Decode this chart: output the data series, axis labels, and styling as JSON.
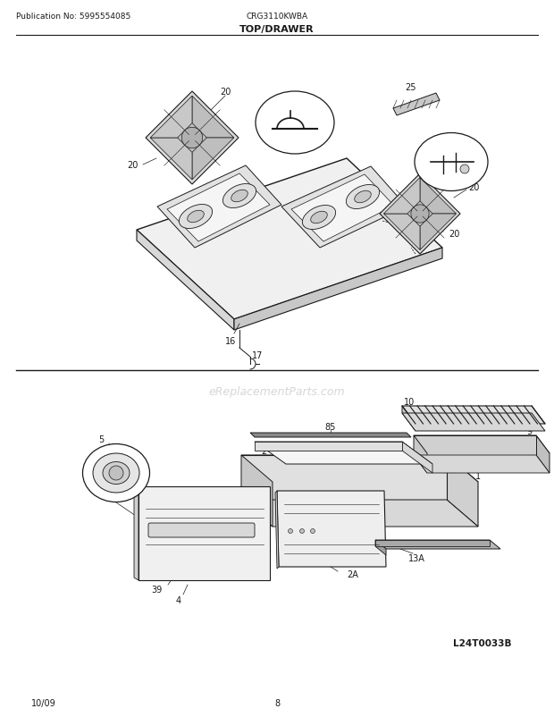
{
  "pub_no": "Publication No: 5995554085",
  "model": "CRG3110KWBA",
  "section_title": "TOP/DRAWER",
  "date": "10/09",
  "page": "8",
  "watermark": "eReplacementParts.com",
  "diagram_code": "L24T0033B",
  "bg_color": "#ffffff",
  "line_color": "#1a1a1a",
  "gray1": "#e8e8e8",
  "gray2": "#d0d0d0",
  "gray3": "#b8b8b8",
  "gray4": "#909090"
}
